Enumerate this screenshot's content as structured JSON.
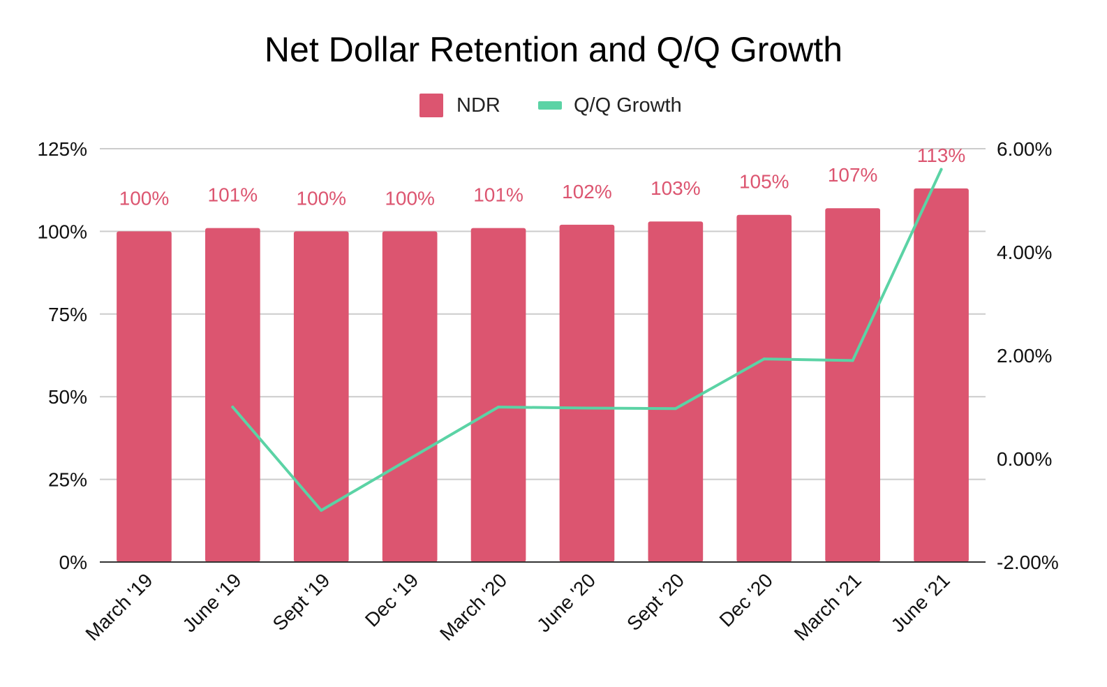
{
  "chart_data": {
    "type": "bar",
    "title": "Net Dollar Retention and Q/Q Growth",
    "categories": [
      "March '19",
      "June '19",
      "Sept '19",
      "Dec '19",
      "March '20",
      "June '20",
      "Sept '20",
      "Dec '20",
      "March '21",
      "June '21"
    ],
    "series": [
      {
        "name": "NDR",
        "type": "bar",
        "axis": "left",
        "color": "#dc5570",
        "values": [
          100,
          101,
          100,
          100,
          101,
          102,
          103,
          105,
          107,
          113
        ],
        "labels": [
          "100%",
          "101%",
          "100%",
          "100%",
          "101%",
          "102%",
          "103%",
          "105%",
          "107%",
          "113%"
        ]
      },
      {
        "name": "Q/Q Growth",
        "type": "line",
        "axis": "right",
        "color": "#5bd3a5",
        "values": [
          null,
          1.0,
          -1.0,
          0.0,
          1.0,
          0.98,
          0.97,
          1.93,
          1.9,
          5.6
        ]
      }
    ],
    "y_left": {
      "min": 0,
      "max": 125,
      "ticks": [
        0,
        25,
        50,
        75,
        100,
        125
      ],
      "tick_labels": [
        "0%",
        "25%",
        "50%",
        "75%",
        "100%",
        "125%"
      ]
    },
    "y_right": {
      "min": -2,
      "max": 6,
      "ticks": [
        -2,
        0,
        2,
        4,
        6
      ],
      "tick_labels": [
        "-2.00%",
        "0.00%",
        "2.00%",
        "4.00%",
        "6.00%"
      ]
    },
    "xlabel": "",
    "ylabel": "",
    "legend_position": "top-center",
    "grid": true
  }
}
